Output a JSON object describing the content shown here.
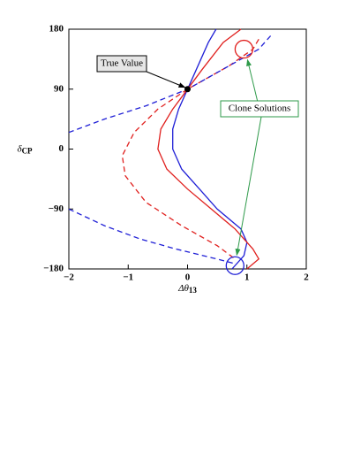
{
  "chart_data": {
    "type": "line",
    "xlabel": {
      "symbol": "Δθ",
      "subscript": "13"
    },
    "ylabel": {
      "symbol": "δ",
      "subscript": "CP"
    },
    "xlim": [
      -2,
      2
    ],
    "ylim": [
      -180,
      180
    ],
    "xticks": [
      {
        "value": -2,
        "label": "−2"
      },
      {
        "value": -1,
        "label": "−1"
      },
      0,
      1,
      2
    ],
    "yticks": [
      {
        "value": -180,
        "label": "−180"
      },
      {
        "value": -90,
        "label": "−90"
      },
      0,
      90,
      180
    ],
    "series": [
      {
        "color": "#1f1fd6",
        "dash": false,
        "x": [
          0.48,
          0.35,
          0.15,
          0,
          -0.15,
          -0.25,
          -0.25,
          -0.1,
          0.2,
          0.5,
          0.9,
          1.0,
          0.95,
          0.75
        ],
        "values": [
          180,
          160,
          120,
          90,
          60,
          30,
          0,
          -30,
          -60,
          -90,
          -120,
          -140,
          -160,
          -180
        ]
      },
      {
        "color": "#e0201e",
        "dash": false,
        "x": [
          0.9,
          0.6,
          0.25,
          0,
          -0.25,
          -0.45,
          -0.5,
          -0.35,
          0,
          0.4,
          0.8,
          1.1,
          1.2,
          1.0
        ],
        "values": [
          180,
          160,
          120,
          90,
          60,
          30,
          0,
          -30,
          -60,
          -90,
          -120,
          -150,
          -165,
          -180
        ]
      },
      {
        "color": "#e0201e",
        "dash": true,
        "x": [
          1.2,
          1.1,
          0.7,
          0,
          -0.5,
          -0.9,
          -1.1,
          -1.05,
          -0.7,
          -0.1,
          0.5,
          0.8
        ],
        "values": [
          165,
          150,
          125,
          90,
          60,
          25,
          -10,
          -40,
          -80,
          -115,
          -145,
          -165
        ]
      },
      {
        "color": "#1f1fd6",
        "dash": true,
        "x": [
          1.4,
          1.2,
          0.7,
          0,
          -0.7,
          -1.4,
          -2,
          null,
          -2,
          -1.4,
          -0.8,
          -0.2,
          0.4,
          0.8
        ],
        "values": [
          170,
          150,
          125,
          90,
          65,
          45,
          25,
          null,
          -90,
          -115,
          -135,
          -150,
          -163,
          -172
        ]
      }
    ],
    "true_value": {
      "label": "True Value",
      "x": 0,
      "y": 90
    },
    "clones": {
      "label": "Clone Solutions",
      "points": [
        {
          "x": 0.95,
          "y": 150,
          "color": "#e0201e"
        },
        {
          "x": 0.8,
          "y": -175,
          "color": "#1f1fd6"
        }
      ]
    }
  }
}
